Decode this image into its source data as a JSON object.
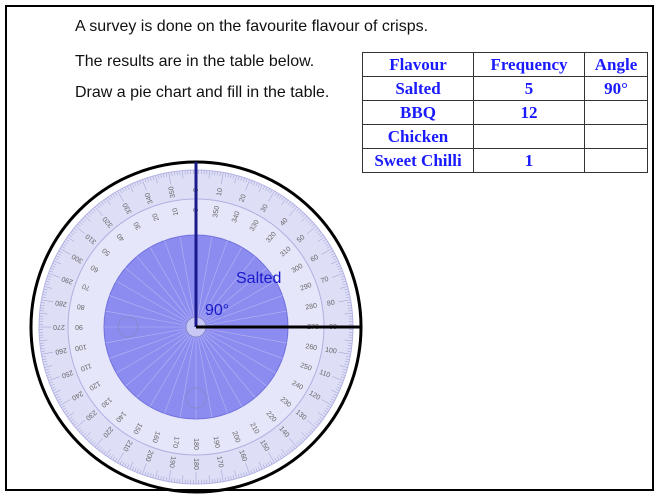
{
  "instructions": [
    "A survey is done on the favourite flavour of crisps.",
    "The results are in the table below.",
    "Draw a pie chart and fill in the table."
  ],
  "table": {
    "header": [
      "Flavour",
      "Frequency",
      "Angle"
    ],
    "rows": [
      [
        "Salted",
        "5",
        "90°"
      ],
      [
        "BBQ",
        "12",
        null
      ],
      [
        "Chicken",
        null,
        null
      ],
      [
        "Sweet Chilli",
        "1",
        null
      ]
    ]
  },
  "pie": {
    "sector_label": "Salted",
    "sector_angle": "90°"
  },
  "protractor": {
    "outer_labels": [
      "0",
      "10",
      "20",
      "30",
      "40",
      "50",
      "60",
      "70",
      "80",
      "90",
      "100",
      "110",
      "120",
      "130",
      "140",
      "150",
      "160",
      "170",
      "180",
      "190",
      "200",
      "210",
      "220",
      "230",
      "240",
      "250",
      "260",
      "270",
      "280",
      "290",
      "300",
      "310",
      "320",
      "330",
      "340",
      "350"
    ],
    "inner_labels": [
      "0",
      "350",
      "340",
      "330",
      "320",
      "310",
      "300",
      "290",
      "280",
      "270",
      "260",
      "250",
      "240",
      "230",
      "220",
      "210",
      "200",
      "190",
      "180",
      "170",
      "160",
      "150",
      "140",
      "130",
      "120",
      "110",
      "100",
      "90",
      "80",
      "70",
      "60",
      "50",
      "40",
      "30",
      "20",
      "10"
    ]
  }
}
